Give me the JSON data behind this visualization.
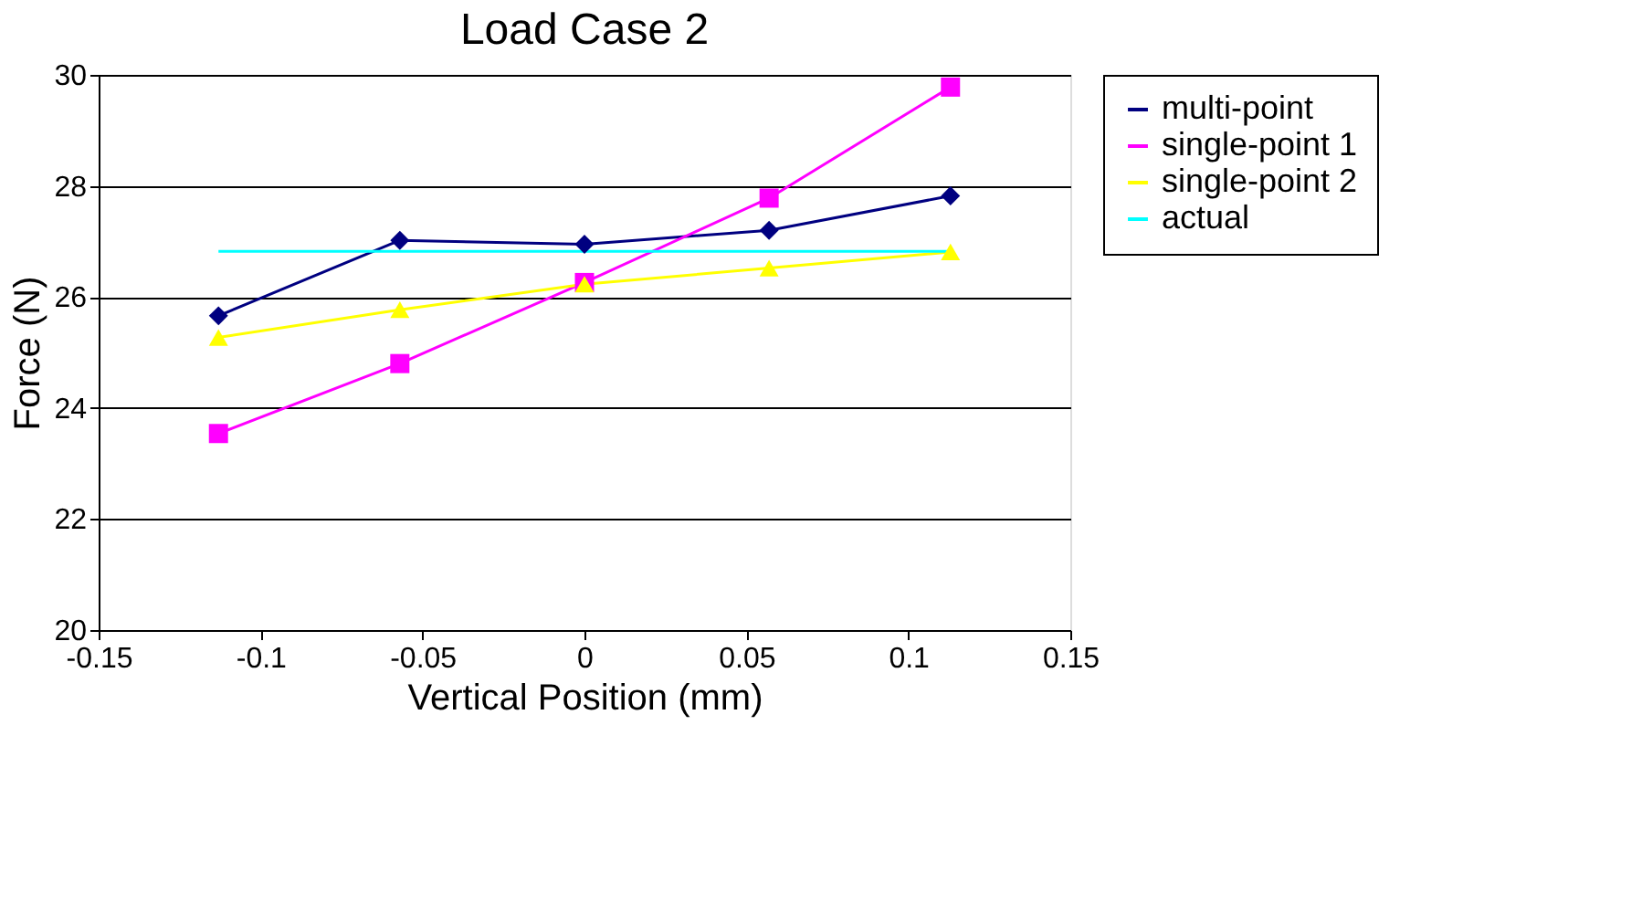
{
  "chart_data": {
    "type": "line",
    "title": "Load Case 2",
    "xlabel": "Vertical Position (mm)",
    "ylabel": "Force (N)",
    "x": [
      -0.113,
      -0.057,
      0,
      0.057,
      0.113
    ],
    "series": [
      {
        "name": "multi-point",
        "color": "#000080",
        "marker": "diamond",
        "values": [
          25.66,
          27.02,
          26.95,
          27.2,
          27.82
        ]
      },
      {
        "name": "single-point 1",
        "color": "#ff00ff",
        "marker": "square",
        "values": [
          23.54,
          24.8,
          26.26,
          27.78,
          29.78
        ]
      },
      {
        "name": "single-point 2",
        "color": "#ffff00",
        "marker": "triangle",
        "values": [
          25.27,
          25.77,
          26.23,
          26.52,
          26.81
        ]
      },
      {
        "name": "actual",
        "color": "#00ffff",
        "marker": "none",
        "values": [
          26.82,
          26.82,
          26.82,
          26.82,
          26.82
        ]
      }
    ],
    "xlim": [
      -0.15,
      0.15
    ],
    "xticks": [
      -0.15,
      -0.1,
      -0.05,
      0,
      0.05,
      0.1,
      0.15
    ],
    "ylim": [
      20,
      30
    ],
    "yticks": [
      20,
      22,
      24,
      26,
      28,
      30
    ],
    "grid": "y",
    "legend": "right",
    "line_style": "solid"
  }
}
